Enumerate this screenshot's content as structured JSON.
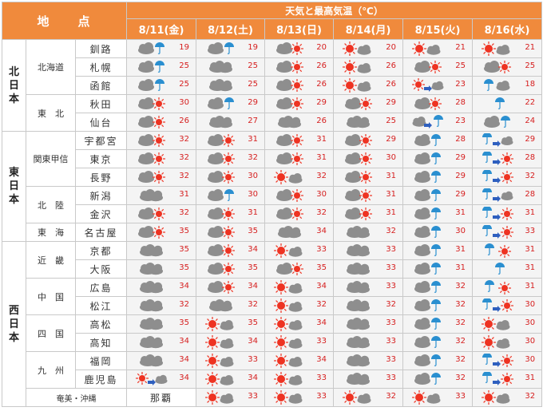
{
  "header": {
    "spot_label": "地　　点",
    "title": "天気と最高気温（℃）",
    "dates": [
      "8/11(金)",
      "8/12(土)",
      "8/13(日)",
      "8/14(月)",
      "8/15(火)",
      "8/16(水)"
    ]
  },
  "colors": {
    "header_bg": "#f08a3c",
    "temp": "#d62020",
    "sun": "#ee3322",
    "cloud": "#8e8e8e",
    "rain": "#2a8fd0",
    "arrow": "#2e5fbf"
  },
  "regions": [
    {
      "label": "北日本",
      "rows": 5
    },
    {
      "label": "東日本",
      "rows": 6
    },
    {
      "label": "西日本",
      "rows": 9
    }
  ],
  "areas": [
    {
      "label": "北海道",
      "rows": 3
    },
    {
      "label": "東　北",
      "rows": 2
    },
    {
      "label": "関東甲信",
      "rows": 3
    },
    {
      "label": "北　陸",
      "rows": 2
    },
    {
      "label": "東　海",
      "rows": 1
    },
    {
      "label": "近　畿",
      "rows": 2
    },
    {
      "label": "中　国",
      "rows": 2
    },
    {
      "label": "四　国",
      "rows": 2
    },
    {
      "label": "九　州",
      "rows": 2
    }
  ],
  "final_area": "奄美・沖縄",
  "cities": [
    {
      "name": "釧路",
      "icons": [
        "cloud-rain",
        "cloud-rain",
        "cloud-sun",
        "sun-cloud",
        "sun-cloud",
        "sun-cloud"
      ],
      "temps": [
        "19",
        "19",
        "20",
        "20",
        "21",
        "21"
      ]
    },
    {
      "name": "札幌",
      "icons": [
        "cloud-rain",
        "cloud",
        "cloud-sun",
        "sun-cloud",
        "cloud-sun",
        "cloud-sun"
      ],
      "temps": [
        "25",
        "25",
        "26",
        "26",
        "25",
        "25"
      ]
    },
    {
      "name": "函館",
      "icons": [
        "cloud-rain",
        "cloud",
        "cloud-sun",
        "sun-cloud",
        "sun-arrow-cloud",
        "rain-cloud"
      ],
      "temps": [
        "25",
        "25",
        "26",
        "26",
        "23",
        "18"
      ]
    },
    {
      "name": "秋田",
      "icons": [
        "cloud-sun",
        "cloud-rain",
        "cloud-sun",
        "cloud-sun",
        "cloud-sun",
        "rain"
      ],
      "temps": [
        "30",
        "29",
        "29",
        "29",
        "28",
        "22"
      ]
    },
    {
      "name": "仙台",
      "icons": [
        "cloud-sun",
        "cloud",
        "cloud",
        "cloud",
        "cloud-arrow-rain",
        "cloud-rain"
      ],
      "temps": [
        "26",
        "27",
        "26",
        "25",
        "23",
        "24"
      ]
    },
    {
      "name": "宇都宮",
      "icons": [
        "cloud-sun",
        "cloud-sun",
        "cloud-sun",
        "cloud-sun",
        "cloud-rain",
        "rain-arrow-cloud"
      ],
      "temps": [
        "32",
        "31",
        "31",
        "29",
        "28",
        "29"
      ]
    },
    {
      "name": "東京",
      "icons": [
        "cloud-sun",
        "cloud-sun",
        "cloud-sun",
        "cloud-sun",
        "cloud-rain",
        "rain-arrow-sun"
      ],
      "temps": [
        "32",
        "32",
        "31",
        "30",
        "29",
        "28"
      ]
    },
    {
      "name": "長野",
      "icons": [
        "cloud-sun",
        "cloud-sun",
        "sun-cloud",
        "cloud-sun",
        "cloud-rain",
        "rain-arrow-sun"
      ],
      "temps": [
        "32",
        "30",
        "32",
        "31",
        "29",
        "32"
      ]
    },
    {
      "name": "新潟",
      "icons": [
        "cloud",
        "cloud-rain",
        "cloud-sun",
        "cloud-sun",
        "cloud-rain",
        "rain-arrow-cloud"
      ],
      "temps": [
        "31",
        "30",
        "30",
        "31",
        "29",
        "28"
      ]
    },
    {
      "name": "金沢",
      "icons": [
        "cloud-sun",
        "cloud-sun",
        "cloud-sun",
        "cloud-sun",
        "cloud-rain",
        "rain-arrow-sun"
      ],
      "temps": [
        "32",
        "31",
        "32",
        "31",
        "31",
        "31"
      ]
    },
    {
      "name": "名古屋",
      "icons": [
        "cloud-sun",
        "cloud-sun",
        "cloud",
        "cloud",
        "cloud-rain",
        "rain-arrow-sun"
      ],
      "temps": [
        "35",
        "35",
        "34",
        "32",
        "30",
        "33"
      ]
    },
    {
      "name": "京都",
      "icons": [
        "cloud",
        "cloud-sun",
        "sun-cloud",
        "cloud",
        "cloud-rain",
        "rain-sun"
      ],
      "temps": [
        "35",
        "34",
        "33",
        "33",
        "31",
        "31"
      ]
    },
    {
      "name": "大阪",
      "icons": [
        "cloud",
        "cloud-sun",
        "cloud-sun",
        "cloud",
        "cloud-rain",
        "rain"
      ],
      "temps": [
        "35",
        "35",
        "35",
        "33",
        "31",
        "31"
      ]
    },
    {
      "name": "広島",
      "icons": [
        "cloud",
        "cloud-sun",
        "sun-cloud",
        "cloud",
        "cloud-rain",
        "rain-sun"
      ],
      "temps": [
        "34",
        "34",
        "34",
        "33",
        "32",
        "31"
      ]
    },
    {
      "name": "松江",
      "icons": [
        "cloud",
        "cloud",
        "sun-cloud",
        "cloud",
        "cloud-rain",
        "rain-arrow-sun"
      ],
      "temps": [
        "32",
        "32",
        "32",
        "32",
        "32",
        "30"
      ]
    },
    {
      "name": "高松",
      "icons": [
        "cloud",
        "sun-cloud",
        "sun-cloud",
        "cloud",
        "cloud-rain",
        "sun-cloud"
      ],
      "temps": [
        "35",
        "35",
        "34",
        "33",
        "32",
        "30"
      ]
    },
    {
      "name": "高知",
      "icons": [
        "cloud",
        "sun-cloud",
        "sun-cloud",
        "cloud",
        "cloud-rain",
        "sun-cloud"
      ],
      "temps": [
        "34",
        "34",
        "33",
        "33",
        "32",
        "30"
      ]
    },
    {
      "name": "福岡",
      "icons": [
        "cloud",
        "sun-cloud",
        "sun-cloud",
        "cloud",
        "cloud-rain",
        "rain-arrow-sun"
      ],
      "temps": [
        "34",
        "33",
        "34",
        "33",
        "32",
        "30"
      ]
    },
    {
      "name": "鹿児島",
      "icons": [
        "sun-arrow-cloud",
        "sun-cloud",
        "sun-cloud",
        "cloud",
        "cloud-rain",
        "rain-arrow-sun"
      ],
      "temps": [
        "34",
        "34",
        "33",
        "33",
        "32",
        "31"
      ]
    },
    {
      "name": "那覇",
      "icons": [
        "sun-cloud",
        "sun-cloud",
        "sun-cloud",
        "sun-cloud",
        "sun-cloud",
        "sun-cloud"
      ],
      "temps": [
        "33",
        "33",
        "32",
        "33",
        "32",
        "32"
      ]
    }
  ]
}
